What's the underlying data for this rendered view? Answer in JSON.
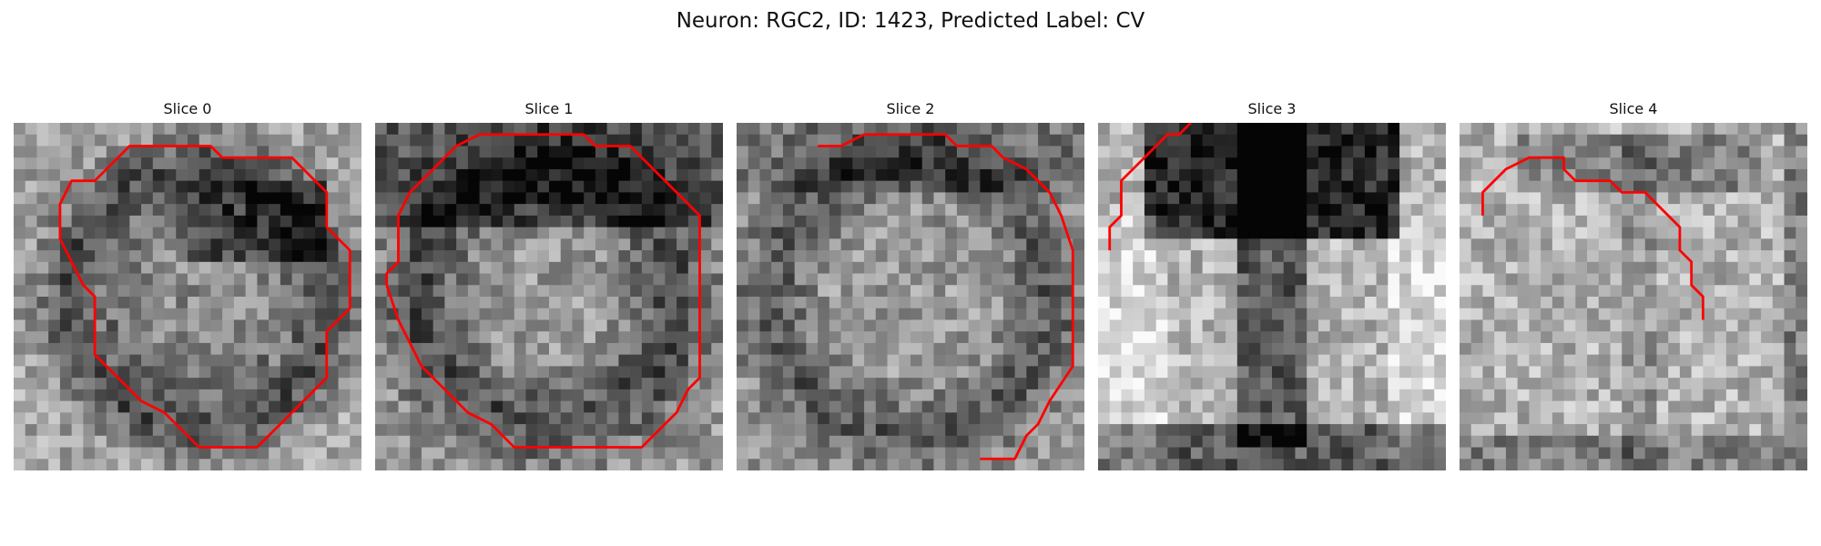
{
  "figure": {
    "title": "Neuron: RGC2, ID: 1423, Predicted Label: CV"
  },
  "outline_color": "#ff0000",
  "slices": [
    {
      "title": "Slice 0",
      "outline": [
        [
          14,
          2
        ],
        [
          17,
          2
        ],
        [
          18,
          3
        ],
        [
          24,
          3
        ],
        [
          27,
          6
        ],
        [
          27,
          9
        ],
        [
          29,
          11
        ],
        [
          29,
          16
        ],
        [
          27,
          18
        ],
        [
          27,
          22
        ],
        [
          24,
          25
        ],
        [
          21,
          28
        ],
        [
          16,
          28
        ],
        [
          14,
          26
        ],
        [
          13,
          25
        ],
        [
          11,
          24
        ],
        [
          9,
          22
        ],
        [
          7,
          20
        ],
        [
          7,
          15
        ],
        [
          6,
          14
        ],
        [
          5,
          12
        ],
        [
          4,
          10
        ],
        [
          4,
          7
        ],
        [
          5,
          5
        ],
        [
          7,
          5
        ],
        [
          8,
          4
        ],
        [
          9,
          3
        ],
        [
          10,
          2
        ],
        [
          14,
          2
        ]
      ]
    },
    {
      "title": "Slice 1",
      "outline": [
        [
          9,
          1
        ],
        [
          18,
          1
        ],
        [
          19,
          2
        ],
        [
          22,
          2
        ],
        [
          24,
          4
        ],
        [
          25,
          5
        ],
        [
          26,
          6
        ],
        [
          28,
          8
        ],
        [
          28,
          10
        ],
        [
          28,
          22
        ],
        [
          27,
          23
        ],
        [
          26,
          25
        ],
        [
          24,
          27
        ],
        [
          23,
          28
        ],
        [
          12,
          28
        ],
        [
          10,
          26
        ],
        [
          8,
          25
        ],
        [
          6,
          23
        ],
        [
          4,
          21
        ],
        [
          3,
          19
        ],
        [
          2,
          17
        ],
        [
          1,
          14
        ],
        [
          1,
          13
        ],
        [
          2,
          12
        ],
        [
          2,
          8
        ],
        [
          3,
          6
        ],
        [
          5,
          4
        ],
        [
          7,
          2
        ],
        [
          9,
          1
        ]
      ]
    },
    {
      "title": "Slice 2",
      "outline": [
        [
          7,
          2
        ],
        [
          9,
          2
        ],
        [
          11,
          1
        ],
        [
          18,
          1
        ],
        [
          19,
          2
        ],
        [
          22,
          2
        ],
        [
          23,
          3
        ],
        [
          25,
          4
        ],
        [
          27,
          6
        ],
        [
          28,
          8
        ],
        [
          29,
          11
        ],
        [
          29,
          21
        ],
        [
          27,
          24
        ],
        [
          26,
          26
        ],
        [
          25,
          27
        ],
        [
          24,
          29
        ],
        [
          21,
          29
        ]
      ]
    },
    {
      "title": "Slice 3",
      "outline": [
        [
          8,
          0
        ],
        [
          7,
          1
        ],
        [
          6,
          1
        ],
        [
          5,
          2
        ],
        [
          4,
          3
        ],
        [
          3,
          4
        ],
        [
          2,
          5
        ],
        [
          2,
          8
        ],
        [
          1,
          9
        ],
        [
          1,
          11
        ]
      ]
    },
    {
      "title": "Slice 4",
      "outline": [
        [
          2,
          8
        ],
        [
          2,
          6
        ],
        [
          3,
          5
        ],
        [
          4,
          4
        ],
        [
          6,
          3
        ],
        [
          9,
          3
        ],
        [
          9,
          4
        ],
        [
          10,
          5
        ],
        [
          13,
          5
        ],
        [
          14,
          6
        ],
        [
          16,
          6
        ],
        [
          18,
          8
        ],
        [
          19,
          9
        ],
        [
          19,
          11
        ],
        [
          20,
          12
        ],
        [
          20,
          14
        ],
        [
          21,
          15
        ],
        [
          21,
          17
        ]
      ]
    }
  ]
}
